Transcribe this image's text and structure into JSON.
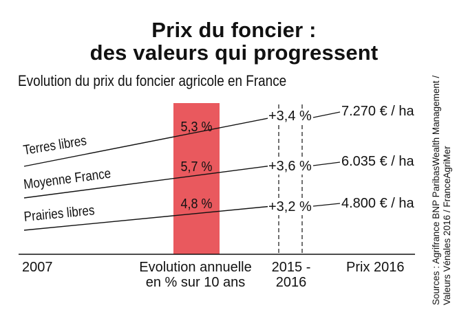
{
  "title_line1": "Prix du foncier :",
  "title_line2": "des valeurs qui progressent",
  "subtitle": "Evolution du prix du foncier agricole en France",
  "sources_line1": "Sources : Agrifrance BNP ParibasWealth Management /",
  "sources_line2": "Valeurs Vénales 2016 / FranceAgriMer",
  "chart_data": {
    "type": "line",
    "x_labels": [
      "2007",
      "Evolution annuelle en % sur 10 ans",
      "2015 - 2016",
      "Prix 2016"
    ],
    "column_labels": {
      "start": "2007",
      "annual_line1": "Evolution annuelle",
      "annual_line2": "en % sur 10 ans",
      "recent_line1": "2015 -",
      "recent_line2": "2016",
      "price": "Prix 2016"
    },
    "series": [
      {
        "name": "Terres libres",
        "annual_rate": "5,3 %",
        "change_2015_2016": "+3,4 %",
        "price_2016": "7.270 € / ha",
        "price_value": 7270
      },
      {
        "name": "Moyenne France",
        "annual_rate": "5,7 %",
        "change_2015_2016": "+3,6 %",
        "price_2016": "6.035 € / ha",
        "price_value": 6035
      },
      {
        "name": "Prairies libres",
        "annual_rate": "4,8 %",
        "change_2015_2016": "+3,2 %",
        "price_2016": "4.800 € / ha",
        "price_value": 4800
      }
    ],
    "colors": {
      "bar": "#e9595e",
      "lines": "#111111"
    }
  }
}
